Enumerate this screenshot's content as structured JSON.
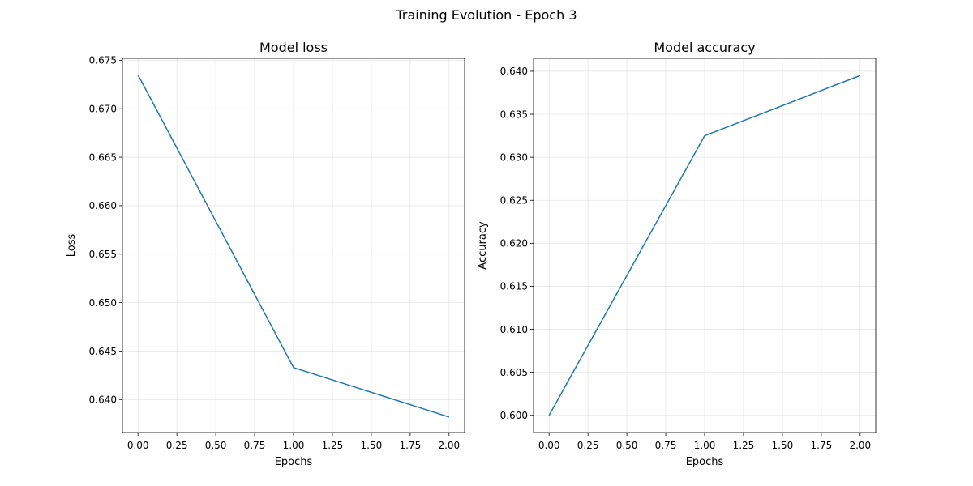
{
  "figure": {
    "title": "Training Evolution - Epoch 3"
  },
  "chart_data": [
    {
      "type": "line",
      "title": "Model loss",
      "xlabel": "Epochs",
      "ylabel": "Loss",
      "grid": true,
      "xlim": [
        -0.1,
        2.1
      ],
      "ylim": [
        0.6366,
        0.6752
      ],
      "xticks": [
        0.0,
        0.25,
        0.5,
        0.75,
        1.0,
        1.25,
        1.5,
        1.75,
        2.0
      ],
      "xticklabels": [
        "0.00",
        "0.25",
        "0.50",
        "0.75",
        "1.00",
        "1.25",
        "1.50",
        "1.75",
        "2.00"
      ],
      "yticks": [
        0.64,
        0.645,
        0.65,
        0.655,
        0.66,
        0.665,
        0.67,
        0.675
      ],
      "yticklabels": [
        "0.640",
        "0.645",
        "0.650",
        "0.655",
        "0.660",
        "0.665",
        "0.670",
        "0.675"
      ],
      "series": [
        {
          "x": [
            0,
            1,
            2
          ],
          "values": [
            0.6735,
            0.6433,
            0.6382
          ],
          "color": "#1f77b4"
        }
      ]
    },
    {
      "type": "line",
      "title": "Model accuracy",
      "xlabel": "Epochs",
      "ylabel": "Accuracy",
      "grid": true,
      "xlim": [
        -0.1,
        2.1
      ],
      "ylim": [
        0.598,
        0.6415
      ],
      "xticks": [
        0.0,
        0.25,
        0.5,
        0.75,
        1.0,
        1.25,
        1.5,
        1.75,
        2.0
      ],
      "xticklabels": [
        "0.00",
        "0.25",
        "0.50",
        "0.75",
        "1.00",
        "1.25",
        "1.50",
        "1.75",
        "2.00"
      ],
      "yticks": [
        0.6,
        0.605,
        0.61,
        0.615,
        0.62,
        0.625,
        0.63,
        0.635,
        0.64
      ],
      "yticklabels": [
        "0.600",
        "0.605",
        "0.610",
        "0.615",
        "0.620",
        "0.625",
        "0.630",
        "0.635",
        "0.640"
      ],
      "series": [
        {
          "x": [
            0,
            1,
            2
          ],
          "values": [
            0.6,
            0.6325,
            0.6395
          ],
          "color": "#1f77b4"
        }
      ]
    }
  ]
}
